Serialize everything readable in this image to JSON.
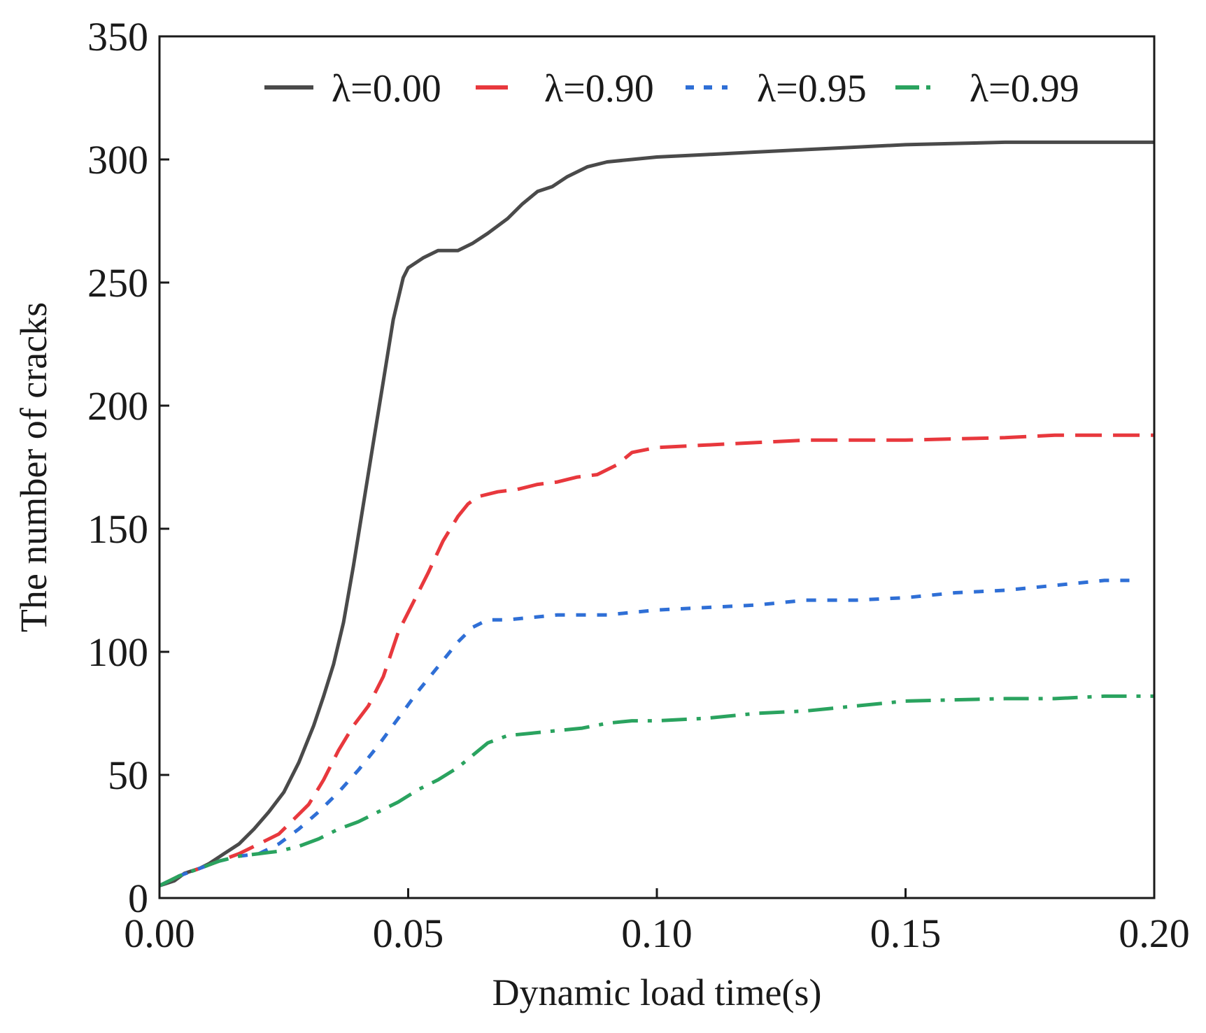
{
  "chart_data": {
    "type": "line",
    "xlabel": "Dynamic load time(s)",
    "ylabel": "The number of  cracks",
    "xlim": [
      0,
      0.2
    ],
    "ylim": [
      0,
      350
    ],
    "x_ticks": [
      "0.00",
      "0.05",
      "0.10",
      "0.15",
      "0.20"
    ],
    "x_tick_values": [
      0,
      0.05,
      0.1,
      0.15,
      0.2
    ],
    "y_ticks": [
      "0",
      "50",
      "100",
      "150",
      "200",
      "250",
      "300",
      "350"
    ],
    "y_tick_values": [
      0,
      50,
      100,
      150,
      200,
      250,
      300,
      350
    ],
    "grid": false,
    "legend_position": "top",
    "series": [
      {
        "name": "λ=0.00",
        "color": "#4a4a4a",
        "dash": "solid",
        "points": [
          [
            0.0,
            5
          ],
          [
            0.003,
            7
          ],
          [
            0.005,
            10
          ],
          [
            0.008,
            12
          ],
          [
            0.01,
            14
          ],
          [
            0.013,
            18
          ],
          [
            0.016,
            22
          ],
          [
            0.019,
            28
          ],
          [
            0.022,
            35
          ],
          [
            0.025,
            43
          ],
          [
            0.028,
            55
          ],
          [
            0.031,
            70
          ],
          [
            0.033,
            82
          ],
          [
            0.035,
            95
          ],
          [
            0.037,
            112
          ],
          [
            0.039,
            135
          ],
          [
            0.041,
            160
          ],
          [
            0.043,
            185
          ],
          [
            0.045,
            210
          ],
          [
            0.047,
            235
          ],
          [
            0.049,
            252
          ],
          [
            0.05,
            256
          ],
          [
            0.053,
            260
          ],
          [
            0.056,
            263
          ],
          [
            0.06,
            263
          ],
          [
            0.063,
            266
          ],
          [
            0.066,
            270
          ],
          [
            0.07,
            276
          ],
          [
            0.073,
            282
          ],
          [
            0.076,
            287
          ],
          [
            0.079,
            289
          ],
          [
            0.082,
            293
          ],
          [
            0.086,
            297
          ],
          [
            0.09,
            299
          ],
          [
            0.095,
            300
          ],
          [
            0.1,
            301
          ],
          [
            0.11,
            302
          ],
          [
            0.12,
            303
          ],
          [
            0.13,
            304
          ],
          [
            0.14,
            305
          ],
          [
            0.15,
            306
          ],
          [
            0.16,
            306.5
          ],
          [
            0.17,
            307
          ],
          [
            0.185,
            307
          ],
          [
            0.2,
            307
          ]
        ]
      },
      {
        "name": "λ=0.90",
        "color": "#e8383d",
        "dash": "long",
        "points": [
          [
            0.0,
            5
          ],
          [
            0.004,
            9
          ],
          [
            0.008,
            12
          ],
          [
            0.012,
            15
          ],
          [
            0.016,
            18
          ],
          [
            0.02,
            22
          ],
          [
            0.024,
            26
          ],
          [
            0.027,
            32
          ],
          [
            0.03,
            38
          ],
          [
            0.033,
            48
          ],
          [
            0.036,
            60
          ],
          [
            0.039,
            70
          ],
          [
            0.042,
            78
          ],
          [
            0.045,
            90
          ],
          [
            0.048,
            108
          ],
          [
            0.051,
            120
          ],
          [
            0.054,
            132
          ],
          [
            0.057,
            145
          ],
          [
            0.06,
            155
          ],
          [
            0.062,
            160
          ],
          [
            0.064,
            163
          ],
          [
            0.068,
            165
          ],
          [
            0.072,
            166
          ],
          [
            0.076,
            168
          ],
          [
            0.08,
            169
          ],
          [
            0.084,
            171
          ],
          [
            0.088,
            172
          ],
          [
            0.092,
            176
          ],
          [
            0.095,
            181
          ],
          [
            0.1,
            183
          ],
          [
            0.11,
            184
          ],
          [
            0.12,
            185
          ],
          [
            0.13,
            186
          ],
          [
            0.14,
            186
          ],
          [
            0.15,
            186
          ],
          [
            0.16,
            186.5
          ],
          [
            0.17,
            187
          ],
          [
            0.18,
            188
          ],
          [
            0.19,
            188
          ],
          [
            0.2,
            188
          ]
        ]
      },
      {
        "name": "λ=0.95",
        "color": "#2f6fd6",
        "dash": "short",
        "points": [
          [
            0.0,
            5
          ],
          [
            0.004,
            9
          ],
          [
            0.008,
            12
          ],
          [
            0.012,
            15
          ],
          [
            0.016,
            17
          ],
          [
            0.02,
            18
          ],
          [
            0.024,
            22
          ],
          [
            0.028,
            28
          ],
          [
            0.032,
            35
          ],
          [
            0.036,
            43
          ],
          [
            0.04,
            52
          ],
          [
            0.044,
            62
          ],
          [
            0.048,
            73
          ],
          [
            0.052,
            84
          ],
          [
            0.056,
            94
          ],
          [
            0.06,
            104
          ],
          [
            0.063,
            110
          ],
          [
            0.066,
            113
          ],
          [
            0.07,
            113
          ],
          [
            0.075,
            114
          ],
          [
            0.08,
            115
          ],
          [
            0.085,
            115
          ],
          [
            0.09,
            115
          ],
          [
            0.095,
            116
          ],
          [
            0.1,
            117
          ],
          [
            0.11,
            118
          ],
          [
            0.12,
            119
          ],
          [
            0.13,
            121
          ],
          [
            0.14,
            121
          ],
          [
            0.15,
            122
          ],
          [
            0.16,
            124
          ],
          [
            0.17,
            125
          ],
          [
            0.18,
            127
          ],
          [
            0.19,
            129
          ],
          [
            0.195,
            129
          ]
        ]
      },
      {
        "name": "λ=0.99",
        "color": "#2aa35f",
        "dash": "dashdot",
        "points": [
          [
            0.0,
            5
          ],
          [
            0.004,
            9
          ],
          [
            0.008,
            12
          ],
          [
            0.012,
            15
          ],
          [
            0.016,
            17
          ],
          [
            0.02,
            18
          ],
          [
            0.024,
            19
          ],
          [
            0.028,
            21
          ],
          [
            0.032,
            24
          ],
          [
            0.036,
            28
          ],
          [
            0.04,
            31
          ],
          [
            0.044,
            35
          ],
          [
            0.048,
            39
          ],
          [
            0.052,
            44
          ],
          [
            0.056,
            48
          ],
          [
            0.06,
            53
          ],
          [
            0.063,
            58
          ],
          [
            0.066,
            63
          ],
          [
            0.07,
            66
          ],
          [
            0.075,
            67
          ],
          [
            0.08,
            68
          ],
          [
            0.085,
            69
          ],
          [
            0.09,
            71
          ],
          [
            0.095,
            72
          ],
          [
            0.1,
            72
          ],
          [
            0.11,
            73
          ],
          [
            0.12,
            75
          ],
          [
            0.13,
            76
          ],
          [
            0.14,
            78
          ],
          [
            0.15,
            80
          ],
          [
            0.16,
            80.5
          ],
          [
            0.17,
            81
          ],
          [
            0.18,
            81
          ],
          [
            0.19,
            82
          ],
          [
            0.2,
            82
          ]
        ]
      }
    ]
  }
}
